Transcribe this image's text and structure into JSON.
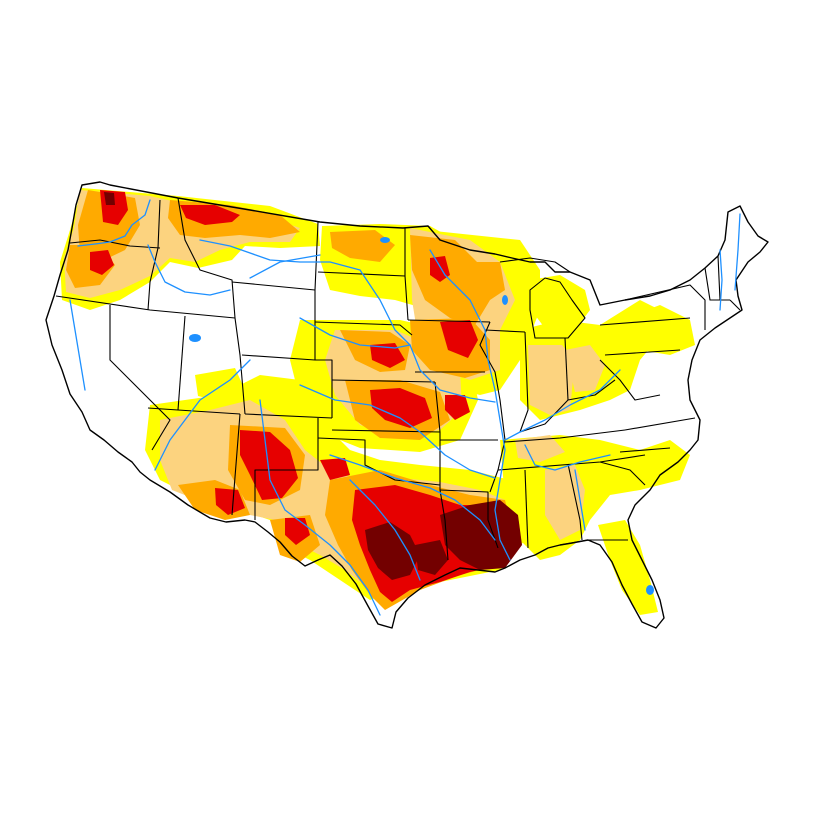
{
  "map": {
    "region": "contiguous-united-states",
    "layers": [
      "drought-severity-shading",
      "state-boundaries",
      "rivers-and-lakes"
    ],
    "colors": {
      "background": "#ffffff",
      "level_1": "#ffff00",
      "level_2": "#fcd37f",
      "level_3": "#ffaa00",
      "level_4": "#e60000",
      "level_5": "#730000",
      "boundaries": "#000000",
      "water": "#1e90ff"
    }
  }
}
